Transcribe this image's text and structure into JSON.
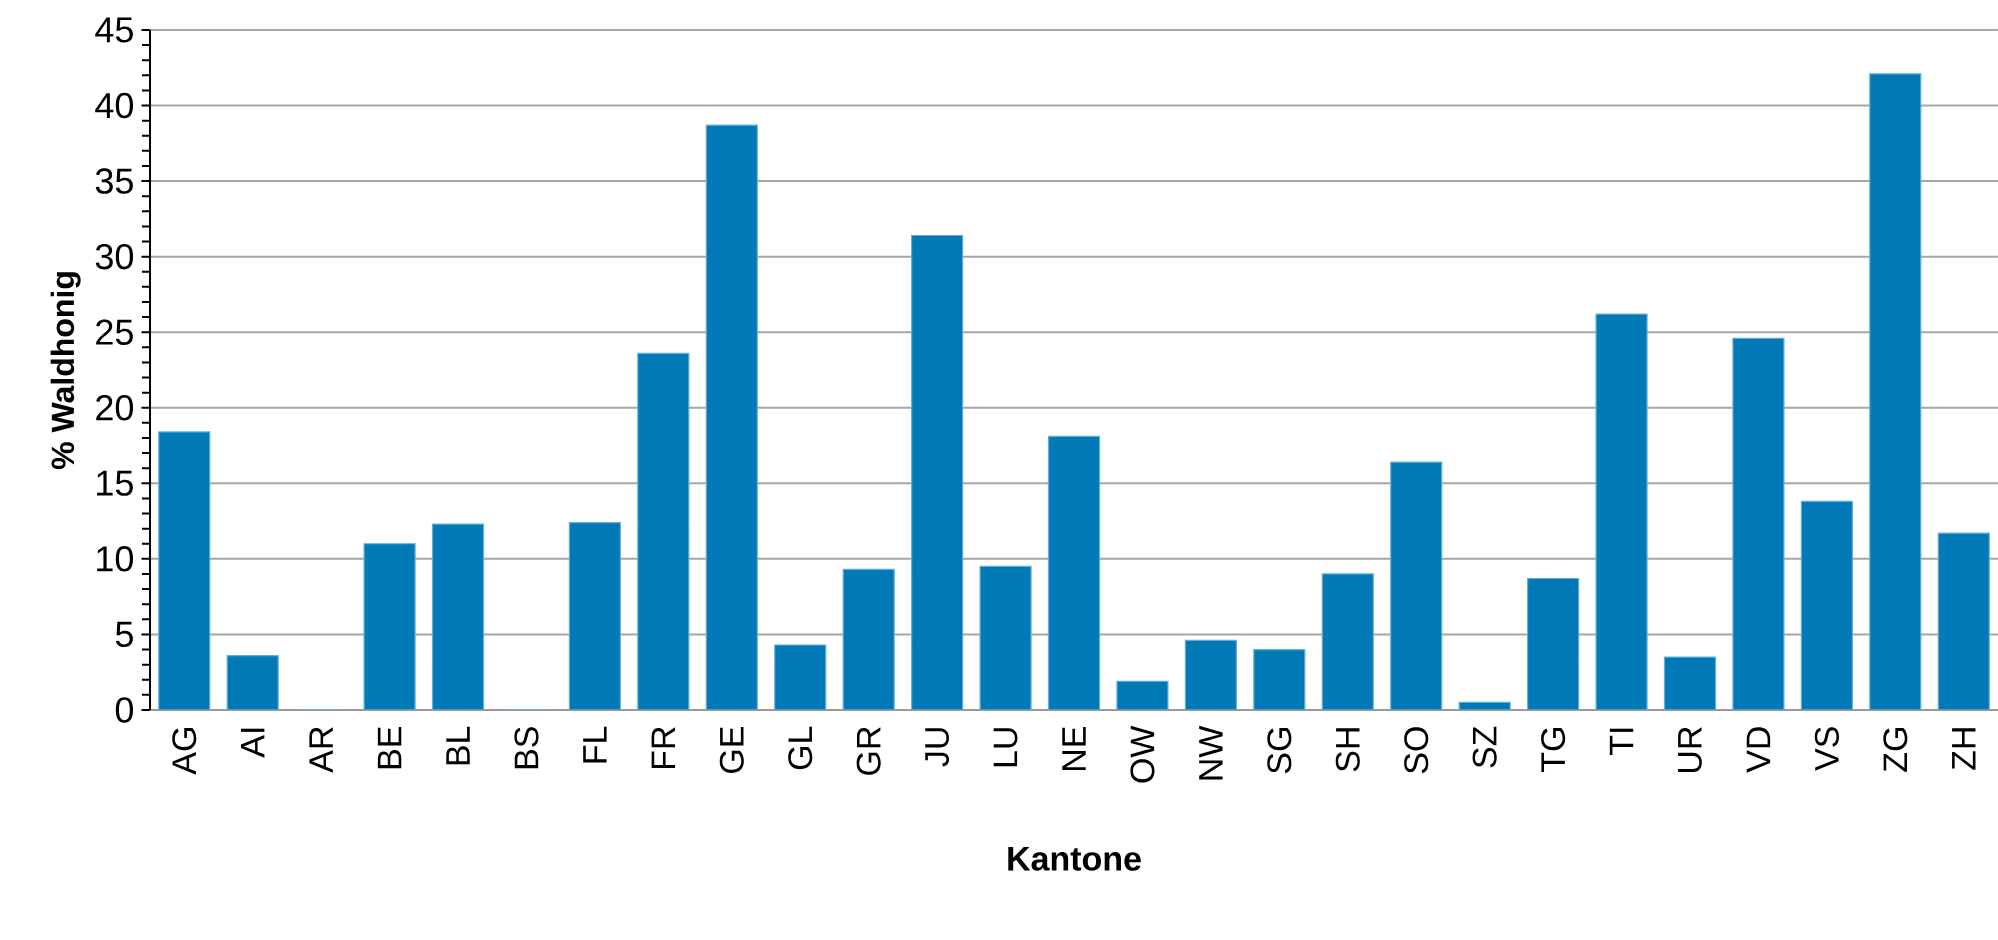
{
  "chart_data": {
    "type": "bar",
    "xlabel": "Kantone",
    "ylabel": "% Waldhonig",
    "categories": [
      "AG",
      "AI",
      "AR",
      "BE",
      "BL",
      "BS",
      "FL",
      "FR",
      "GE",
      "GL",
      "GR",
      "JU",
      "LU",
      "NE",
      "OW",
      "NW",
      "SG",
      "SH",
      "SO",
      "SZ",
      "TG",
      "TI",
      "UR",
      "VD",
      "VS",
      "ZG",
      "ZH"
    ],
    "values": [
      18.4,
      3.6,
      0,
      11.0,
      12.3,
      0,
      12.4,
      23.6,
      38.7,
      4.3,
      9.3,
      31.4,
      9.5,
      18.1,
      1.9,
      4.6,
      4.0,
      9.0,
      16.4,
      0.5,
      8.7,
      26.2,
      3.5,
      24.6,
      13.8,
      42.1,
      11.7
    ],
    "color": "#0079b6",
    "ylim": [
      0,
      45
    ],
    "yticks": [
      0,
      5,
      10,
      15,
      20,
      25,
      30,
      35,
      40,
      45
    ],
    "grid": "y"
  }
}
